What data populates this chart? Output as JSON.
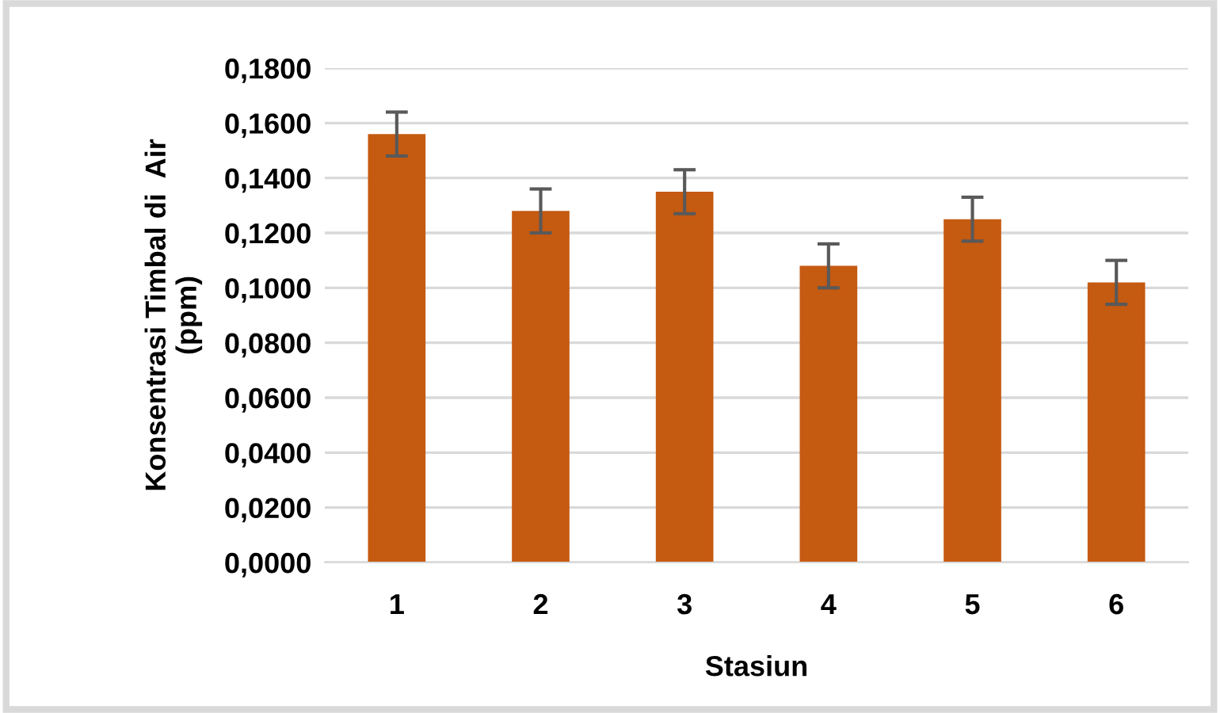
{
  "chart_data": {
    "type": "bar",
    "xlabel": "Stasiun",
    "ylabel": "Konsentrasi Timbal di  Air\n(ppm)",
    "categories": [
      "1",
      "2",
      "3",
      "4",
      "5",
      "6"
    ],
    "values": [
      0.156,
      0.128,
      0.135,
      0.108,
      0.125,
      0.102
    ],
    "errors": [
      0.008,
      0.008,
      0.008,
      0.008,
      0.008,
      0.008
    ],
    "color": "#c55a11",
    "ylim": [
      0,
      0.18
    ],
    "yticks": [
      {
        "value": 0,
        "label": "0,0000"
      },
      {
        "value": 0.02,
        "label": "0,0200"
      },
      {
        "value": 0.04,
        "label": "0,0400"
      },
      {
        "value": 0.06,
        "label": "0,0600"
      },
      {
        "value": 0.08,
        "label": "0,0800"
      },
      {
        "value": 0.1,
        "label": "0,1000"
      },
      {
        "value": 0.12,
        "label": "0,1200"
      },
      {
        "value": 0.14,
        "label": "0,1400"
      },
      {
        "value": 0.16,
        "label": "0,1600"
      },
      {
        "value": 0.18,
        "label": "0,1800"
      }
    ],
    "grid": "y"
  }
}
